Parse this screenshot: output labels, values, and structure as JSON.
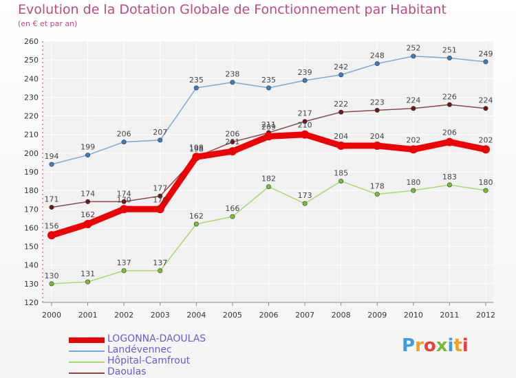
{
  "chart_data": {
    "type": "line",
    "title": "Evolution de la Dotation Globale de Fonctionnement par Habitant",
    "subtitle": "(en € et par an)",
    "x": [
      "2000",
      "2001",
      "2002",
      "2003",
      "2004",
      "2005",
      "2006",
      "2007",
      "2008",
      "2009",
      "2010",
      "2011",
      "2012"
    ],
    "ylim": [
      120,
      260
    ],
    "yticks": [
      120,
      130,
      140,
      150,
      160,
      170,
      180,
      190,
      200,
      210,
      220,
      230,
      240,
      250,
      260
    ],
    "grid": true,
    "legend_position": "bottom-left",
    "series": [
      {
        "name": "Landévennec",
        "color": "#7aa8d4",
        "marker": "#3a7fc0",
        "values": [
          194,
          199,
          206,
          207,
          235,
          238,
          235,
          239,
          242,
          248,
          252,
          251,
          249
        ]
      },
      {
        "name": "Daoulas",
        "color": "#8a4a4a",
        "marker": "#6a1a1a",
        "values": [
          171,
          174,
          174,
          177,
          198,
          206,
          211,
          217,
          222,
          223,
          224,
          226,
          224
        ]
      },
      {
        "name": "Hôpital-Camfrout",
        "color": "#a8d870",
        "marker": "#78c030",
        "values": [
          130,
          131,
          137,
          137,
          162,
          166,
          182,
          173,
          185,
          178,
          180,
          183,
          180
        ]
      },
      {
        "name": "LOGONNA-DAOULAS",
        "color": "#ee0000",
        "marker": "#ee0000",
        "values": [
          156,
          162,
          170,
          170,
          198,
          201,
          209,
          210,
          204,
          204,
          202,
          206,
          202
        ]
      }
    ],
    "legend_order": [
      "LOGONNA-DAOULAS",
      "Landévennec",
      "Hôpital-Camfrout",
      "Daoulas"
    ]
  },
  "logo": {
    "letters": [
      "P",
      "r",
      "o",
      "x",
      "i",
      "t",
      "i"
    ],
    "colors": [
      "#3aa0d8",
      "#f0a020",
      "#e84040",
      "#78b830",
      "#3aa0d8",
      "#f0a020",
      "#e84040"
    ]
  }
}
